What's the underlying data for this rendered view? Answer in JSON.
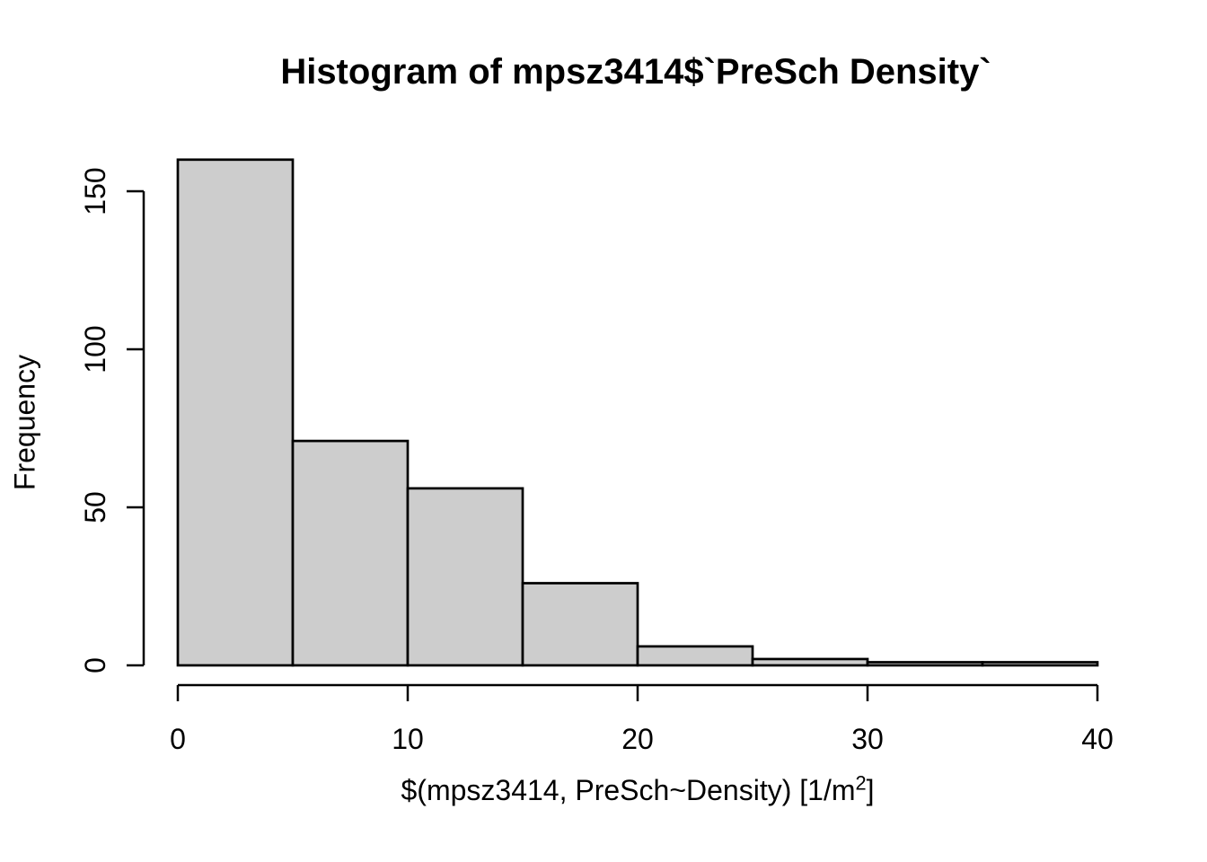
{
  "title": "Histogram of mpsz3414$`PreSch Density`",
  "y_axis": {
    "label": "Frequency",
    "ticks": [
      0,
      50,
      100,
      150
    ]
  },
  "x_axis": {
    "label_prefix": "$(mpsz3414, PreSch~Density) [1/m",
    "label_sup": "2",
    "label_suffix": "]",
    "ticks": [
      0,
      10,
      20,
      30,
      40
    ]
  },
  "chart_data": {
    "type": "bar",
    "subtype": "histogram",
    "title": "Histogram of mpsz3414$`PreSch Density`",
    "xlabel": "$(mpsz3414, PreSch~Density) [1/m^2]",
    "ylabel": "Frequency",
    "bin_breaks": [
      0,
      5,
      10,
      15,
      20,
      25,
      30,
      35,
      40
    ],
    "counts": [
      160,
      71,
      56,
      26,
      6,
      2,
      1,
      1
    ],
    "xticks": [
      0,
      10,
      20,
      30,
      40
    ],
    "yticks": [
      0,
      50,
      100,
      150
    ],
    "xlim": [
      0,
      40
    ],
    "ylim": [
      0,
      160
    ],
    "grid": false,
    "legend": false,
    "bar_fill": "#cdcdcd",
    "bar_stroke": "#000000",
    "axis_color": "#000000"
  },
  "colors": {
    "background": "#ffffff",
    "text": "#000000",
    "bar_fill": "#cdcdcd",
    "bar_stroke": "#000000"
  }
}
